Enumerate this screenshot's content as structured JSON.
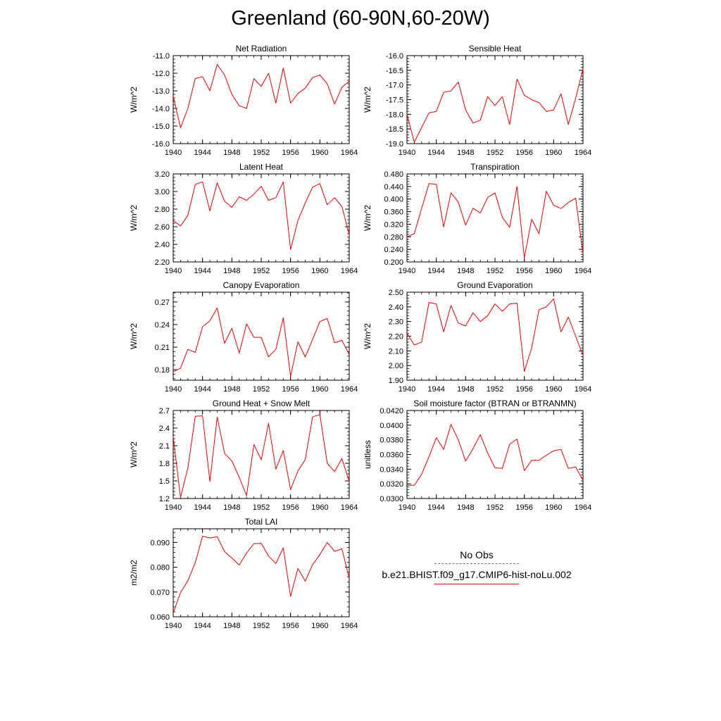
{
  "figure_title": "Greenland (60-90N,60-20W)",
  "colors": {
    "model_line": "#ee0000",
    "obs_line": "#6a6aa8",
    "axis": "#000000"
  },
  "legend": {
    "obs_label": "No Obs",
    "model_label": "b.e21.BHIST.f09_g17.CMIP6-hist-noLu.002"
  },
  "chart_data": [
    {
      "type": "line",
      "title": "Net Radiation",
      "ylabel": "W/m^2",
      "xlim": [
        1940,
        1964
      ],
      "ylim": [
        -16.0,
        -11.0
      ],
      "xticks": [
        1940,
        1944,
        1948,
        1952,
        1956,
        1960,
        1964
      ],
      "yticks": [
        -16.0,
        -15.0,
        -14.0,
        -13.0,
        -12.0,
        -11.0
      ],
      "ytick_labels": [
        "-16.0",
        "-15.0",
        "-14.0",
        "-13.0",
        "-12.0",
        "-11.0"
      ],
      "x": [
        1940,
        1941,
        1942,
        1943,
        1944,
        1945,
        1946,
        1947,
        1948,
        1949,
        1950,
        1951,
        1952,
        1953,
        1954,
        1955,
        1956,
        1957,
        1958,
        1959,
        1960,
        1961,
        1962,
        1963,
        1964
      ],
      "series": [
        {
          "values": [
            -13.3,
            -15.1,
            -14.0,
            -12.3,
            -12.2,
            -13.0,
            -11.5,
            -12.1,
            -13.2,
            -13.85,
            -14.0,
            -12.3,
            -12.75,
            -12.0,
            -13.7,
            -11.7,
            -13.7,
            -13.15,
            -12.85,
            -12.25,
            -12.1,
            -12.6,
            -13.75,
            -12.8,
            -12.45
          ]
        }
      ]
    },
    {
      "type": "line",
      "title": "Sensible Heat",
      "ylabel": "W/m^2",
      "xlim": [
        1940,
        1964
      ],
      "ylim": [
        -19.0,
        -16.0
      ],
      "xticks": [
        1940,
        1944,
        1948,
        1952,
        1956,
        1960,
        1964
      ],
      "yticks": [
        -19.0,
        -18.5,
        -18.0,
        -17.5,
        -17.0,
        -16.5,
        -16.0
      ],
      "ytick_labels": [
        "-19.0",
        "-18.5",
        "-18.0",
        "-17.5",
        "-17.0",
        "-16.5",
        "-16.0"
      ],
      "x": [
        1940,
        1941,
        1942,
        1943,
        1944,
        1945,
        1946,
        1947,
        1948,
        1949,
        1950,
        1951,
        1952,
        1953,
        1954,
        1955,
        1956,
        1957,
        1958,
        1959,
        1960,
        1961,
        1962,
        1963,
        1964
      ],
      "series": [
        {
          "values": [
            -18.0,
            -18.95,
            -18.45,
            -17.95,
            -17.9,
            -17.25,
            -17.2,
            -16.9,
            -17.85,
            -18.3,
            -18.2,
            -17.4,
            -17.7,
            -17.4,
            -18.35,
            -16.8,
            -17.35,
            -17.5,
            -17.6,
            -17.9,
            -17.85,
            -17.3,
            -18.35,
            -17.45,
            -16.45
          ]
        }
      ]
    },
    {
      "type": "line",
      "title": "Latent Heat",
      "ylabel": "W/m^2",
      "xlim": [
        1940,
        1964
      ],
      "ylim": [
        2.2,
        3.2
      ],
      "xticks": [
        1940,
        1944,
        1948,
        1952,
        1956,
        1960,
        1964
      ],
      "yticks": [
        2.2,
        2.4,
        2.6,
        2.8,
        3.0,
        3.2
      ],
      "ytick_labels": [
        "2.20",
        "2.40",
        "2.60",
        "2.80",
        "3.00",
        "3.20"
      ],
      "x": [
        1940,
        1941,
        1942,
        1943,
        1944,
        1945,
        1946,
        1947,
        1948,
        1949,
        1950,
        1951,
        1952,
        1953,
        1954,
        1955,
        1956,
        1957,
        1958,
        1959,
        1960,
        1961,
        1962,
        1963,
        1964
      ],
      "series": [
        {
          "values": [
            2.67,
            2.61,
            2.73,
            3.08,
            3.11,
            2.78,
            3.1,
            2.89,
            2.82,
            2.94,
            2.9,
            2.97,
            3.06,
            2.9,
            2.93,
            3.11,
            2.34,
            2.67,
            2.87,
            3.05,
            3.09,
            2.85,
            2.93,
            2.83,
            2.51
          ]
        }
      ]
    },
    {
      "type": "line",
      "title": "Transpiration",
      "ylabel": "W/m^2",
      "xlim": [
        1940,
        1964
      ],
      "ylim": [
        0.2,
        0.48
      ],
      "xticks": [
        1940,
        1944,
        1948,
        1952,
        1956,
        1960,
        1964
      ],
      "yticks": [
        0.2,
        0.24,
        0.28,
        0.32,
        0.36,
        0.4,
        0.44,
        0.48
      ],
      "ytick_labels": [
        "0.200",
        "0.240",
        "0.280",
        "0.320",
        "0.360",
        "0.400",
        "0.440",
        "0.480"
      ],
      "x": [
        1940,
        1941,
        1942,
        1943,
        1944,
        1945,
        1946,
        1947,
        1948,
        1949,
        1950,
        1951,
        1952,
        1953,
        1954,
        1955,
        1956,
        1957,
        1958,
        1959,
        1960,
        1961,
        1962,
        1963,
        1964
      ],
      "series": [
        {
          "values": [
            0.28,
            0.29,
            0.37,
            0.449,
            0.447,
            0.311,
            0.42,
            0.39,
            0.317,
            0.371,
            0.356,
            0.405,
            0.42,
            0.342,
            0.31,
            0.44,
            0.213,
            0.336,
            0.29,
            0.425,
            0.38,
            0.37,
            0.389,
            0.403,
            0.226
          ]
        }
      ]
    },
    {
      "type": "line",
      "title": "Canopy Evaporation",
      "ylabel": "W/m^2",
      "xlim": [
        1940,
        1964
      ],
      "ylim": [
        0.166,
        0.283
      ],
      "xticks": [
        1940,
        1944,
        1948,
        1952,
        1956,
        1960,
        1964
      ],
      "yticks": [
        0.18,
        0.21,
        0.24,
        0.27
      ],
      "ytick_labels": [
        "0.18",
        "0.21",
        "0.24",
        "0.27"
      ],
      "x": [
        1940,
        1941,
        1942,
        1943,
        1944,
        1945,
        1946,
        1947,
        1948,
        1949,
        1950,
        1951,
        1952,
        1953,
        1954,
        1955,
        1956,
        1957,
        1958,
        1959,
        1960,
        1961,
        1962,
        1963,
        1964
      ],
      "series": [
        {
          "values": [
            0.177,
            0.182,
            0.207,
            0.203,
            0.237,
            0.245,
            0.262,
            0.215,
            0.235,
            0.202,
            0.241,
            0.223,
            0.223,
            0.197,
            0.207,
            0.249,
            0.171,
            0.217,
            0.197,
            0.22,
            0.244,
            0.248,
            0.216,
            0.219,
            0.2
          ]
        }
      ]
    },
    {
      "type": "line",
      "title": "Ground Evaporation",
      "ylabel": "W/m^2",
      "xlim": [
        1940,
        1964
      ],
      "ylim": [
        1.9,
        2.5
      ],
      "xticks": [
        1940,
        1944,
        1948,
        1952,
        1956,
        1960,
        1964
      ],
      "yticks": [
        1.9,
        2.0,
        2.1,
        2.2,
        2.3,
        2.4,
        2.5
      ],
      "ytick_labels": [
        "1.90",
        "2.00",
        "2.10",
        "2.20",
        "2.30",
        "2.40",
        "2.50"
      ],
      "x": [
        1940,
        1941,
        1942,
        1943,
        1944,
        1945,
        1946,
        1947,
        1948,
        1949,
        1950,
        1951,
        1952,
        1953,
        1954,
        1955,
        1956,
        1957,
        1958,
        1959,
        1960,
        1961,
        1962,
        1963,
        1964
      ],
      "series": [
        {
          "values": [
            2.22,
            2.14,
            2.16,
            2.43,
            2.42,
            2.23,
            2.41,
            2.29,
            2.27,
            2.36,
            2.3,
            2.34,
            2.42,
            2.37,
            2.42,
            2.425,
            1.96,
            2.12,
            2.38,
            2.4,
            2.455,
            2.23,
            2.33,
            2.2,
            2.07
          ]
        }
      ]
    },
    {
      "type": "line",
      "title": "Ground Heat + Snow Melt",
      "ylabel": "W/m^2",
      "xlim": [
        1940,
        1964
      ],
      "ylim": [
        1.2,
        2.7
      ],
      "xticks": [
        1940,
        1944,
        1948,
        1952,
        1956,
        1960,
        1964
      ],
      "yticks": [
        1.2,
        1.5,
        1.8,
        2.1,
        2.4,
        2.7
      ],
      "ytick_labels": [
        "1.2",
        "1.5",
        "1.8",
        "2.1",
        "2.4",
        "2.7"
      ],
      "x": [
        1940,
        1941,
        1942,
        1943,
        1944,
        1945,
        1946,
        1947,
        1948,
        1949,
        1950,
        1951,
        1952,
        1953,
        1954,
        1955,
        1956,
        1957,
        1958,
        1959,
        1960,
        1961,
        1962,
        1963,
        1964
      ],
      "series": [
        {
          "values": [
            2.25,
            1.22,
            1.72,
            2.6,
            2.61,
            1.49,
            2.59,
            1.97,
            1.84,
            1.56,
            1.25,
            2.12,
            1.86,
            2.48,
            1.7,
            2.02,
            1.35,
            1.67,
            1.86,
            2.59,
            2.63,
            1.8,
            1.66,
            1.88,
            1.49
          ]
        }
      ]
    },
    {
      "type": "line",
      "title": "Soil moisture factor (BTRAN or BTRANMN)",
      "ylabel": "unitless",
      "xlim": [
        1940,
        1964
      ],
      "ylim": [
        0.03,
        0.042
      ],
      "xticks": [
        1940,
        1944,
        1948,
        1952,
        1956,
        1960,
        1964
      ],
      "yticks": [
        0.03,
        0.032,
        0.034,
        0.036,
        0.038,
        0.04,
        0.042
      ],
      "ytick_labels": [
        "0.0300",
        "0.0320",
        "0.0340",
        "0.0360",
        "0.0380",
        "0.0400",
        "0.0420"
      ],
      "x": [
        1940,
        1941,
        1942,
        1943,
        1944,
        1945,
        1946,
        1947,
        1948,
        1949,
        1950,
        1951,
        1952,
        1953,
        1954,
        1955,
        1956,
        1957,
        1958,
        1959,
        1960,
        1961,
        1962,
        1963,
        1964
      ],
      "series": [
        {
          "values": [
            0.0318,
            0.0318,
            0.0333,
            0.0357,
            0.0383,
            0.0367,
            0.0401,
            0.038,
            0.0351,
            0.0368,
            0.0387,
            0.0362,
            0.0342,
            0.0341,
            0.0374,
            0.0381,
            0.0338,
            0.0352,
            0.0352,
            0.0359,
            0.0365,
            0.0367,
            0.0341,
            0.0343,
            0.0325
          ]
        }
      ]
    },
    {
      "type": "line",
      "title": "Total LAI",
      "ylabel": "m2/m2",
      "xlim": [
        1940,
        1964
      ],
      "ylim": [
        0.06,
        0.0955
      ],
      "xticks": [
        1940,
        1944,
        1948,
        1952,
        1956,
        1960,
        1964
      ],
      "yticks": [
        0.06,
        0.07,
        0.08,
        0.09
      ],
      "ytick_labels": [
        "0.060",
        "0.070",
        "0.080",
        "0.090"
      ],
      "x": [
        1940,
        1941,
        1942,
        1943,
        1944,
        1945,
        1946,
        1947,
        1948,
        1949,
        1950,
        1951,
        1952,
        1953,
        1954,
        1955,
        1956,
        1957,
        1958,
        1959,
        1960,
        1961,
        1962,
        1963,
        1964
      ],
      "series": [
        {
          "values": [
            0.0615,
            0.0698,
            0.0745,
            0.0818,
            0.0925,
            0.0918,
            0.0923,
            0.0863,
            0.0837,
            0.0809,
            0.0857,
            0.0895,
            0.0896,
            0.0845,
            0.0815,
            0.0878,
            0.0682,
            0.0795,
            0.0744,
            0.081,
            0.0851,
            0.09,
            0.0864,
            0.0874,
            0.0755
          ]
        }
      ]
    }
  ]
}
